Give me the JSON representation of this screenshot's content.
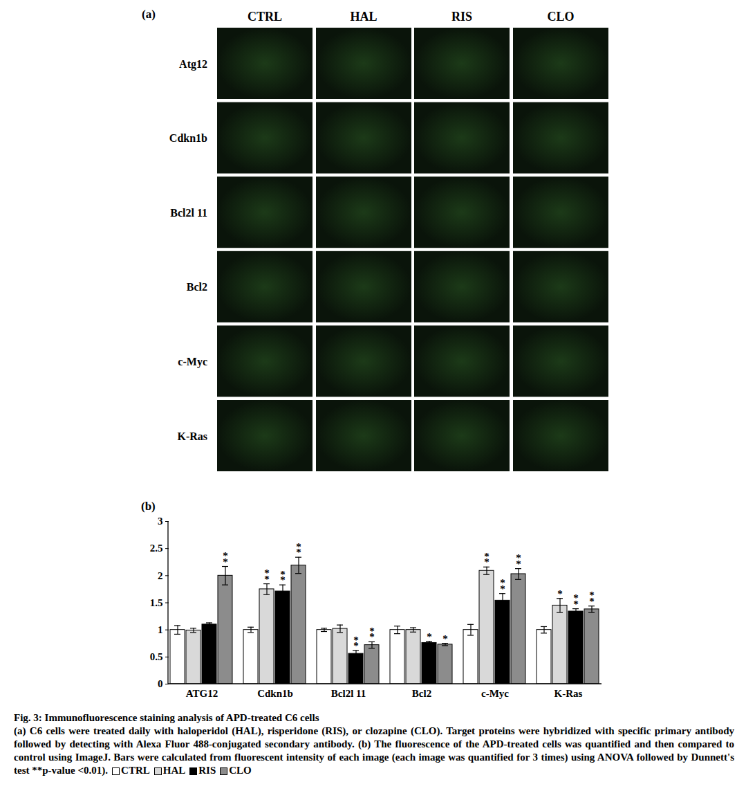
{
  "panel_a": {
    "label": "(a)",
    "columns": [
      "CTRL",
      "HAL",
      "RIS",
      "CLO"
    ],
    "rows": [
      "Atg12",
      "Cdkn1b",
      "Bcl2l 11",
      "Bcl2",
      "c-Myc",
      "K-Ras"
    ]
  },
  "chart_data": {
    "type": "bar",
    "title": "(b)",
    "categories": [
      "ATG12",
      "Cdkn1b",
      "Bcl2l 11",
      "Bcl2",
      "c-Myc",
      "K-Ras"
    ],
    "series": [
      {
        "name": "CTRL",
        "color": "#ffffff",
        "values": [
          1.0,
          1.0,
          1.0,
          1.0,
          1.0,
          1.0
        ],
        "errors": [
          0.08,
          0.05,
          0.03,
          0.07,
          0.1,
          0.06
        ],
        "significance": [
          null,
          null,
          null,
          null,
          null,
          null
        ]
      },
      {
        "name": "HAL",
        "color": "#d9d9d9",
        "values": [
          0.99,
          1.75,
          1.02,
          1.0,
          2.09,
          1.45
        ],
        "errors": [
          0.04,
          0.1,
          0.07,
          0.04,
          0.07,
          0.13
        ],
        "significance": [
          null,
          "**",
          null,
          null,
          "**",
          "*"
        ]
      },
      {
        "name": "RIS",
        "color": "#000000",
        "values": [
          1.1,
          1.71,
          0.56,
          0.76,
          1.54,
          1.34
        ],
        "errors": [
          0.03,
          0.12,
          0.06,
          0.03,
          0.13,
          0.05
        ],
        "significance": [
          null,
          "**",
          "**",
          "*",
          "**",
          "**"
        ]
      },
      {
        "name": "CLO",
        "color": "#8c8c8c",
        "values": [
          2.0,
          2.19,
          0.72,
          0.73,
          2.03,
          1.38
        ],
        "errors": [
          0.17,
          0.15,
          0.06,
          0.02,
          0.1,
          0.06
        ],
        "significance": [
          "**",
          "**",
          "**",
          "*",
          "**",
          "**"
        ]
      }
    ],
    "ylim": [
      0,
      3
    ],
    "yticks": [
      0,
      0.5,
      1,
      1.5,
      2,
      2.5,
      3
    ],
    "grid": false
  },
  "caption": {
    "title": "Fig. 3: Immunofluorescence staining analysis of APD-treated C6 cells",
    "text": "(a) C6 cells were treated daily with haloperidol (HAL), risperidone (RIS), or clozapine (CLO). Target proteins were hybridized with specific primary antibody followed by detecting with Alexa Fluor 488-conjugated secondary antibody. (b) The fluorescence of the APD-treated cells was quantified and then compared to control using ImageJ. Bars were calculated from fluorescent intensity of each image (each image was quantified for 3 times) using ANOVA followed by Dunnett's test **p-value <0.01)."
  }
}
